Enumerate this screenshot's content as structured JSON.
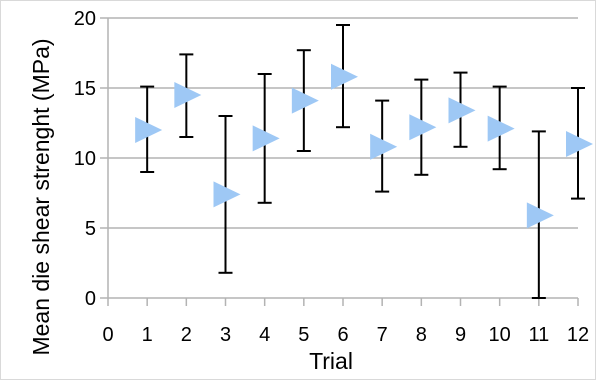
{
  "chart_data": {
    "type": "scatter",
    "title": "",
    "xlabel": "Trial",
    "ylabel": "Mean die shear strenght (MPa)",
    "xlim": [
      0,
      12
    ],
    "ylim": [
      0,
      20
    ],
    "x_ticks": [
      0,
      1,
      2,
      3,
      4,
      5,
      6,
      7,
      8,
      9,
      10,
      11,
      12
    ],
    "y_ticks": [
      0,
      5,
      10,
      15,
      20
    ],
    "grid": "horizontal",
    "legend": "none",
    "marker": "right-pointing-triangle",
    "marker_color": "#9ec8f5",
    "errorbar_color": "#000000",
    "gridline_color": "#b3b3b3",
    "series": [
      {
        "x": [
          1,
          2,
          3,
          4,
          5,
          6,
          7,
          8,
          9,
          10,
          11,
          12
        ],
        "y": [
          12.0,
          14.5,
          7.4,
          11.4,
          14.1,
          15.8,
          10.8,
          12.2,
          13.4,
          12.1,
          5.9,
          11.0
        ],
        "err_low": [
          9.0,
          11.5,
          1.8,
          6.8,
          10.5,
          12.2,
          7.6,
          8.8,
          10.8,
          9.2,
          0.0,
          7.1
        ],
        "err_high": [
          15.1,
          17.4,
          13.0,
          16.0,
          17.7,
          19.5,
          14.1,
          15.6,
          16.1,
          15.1,
          11.9,
          15.0
        ]
      }
    ]
  }
}
